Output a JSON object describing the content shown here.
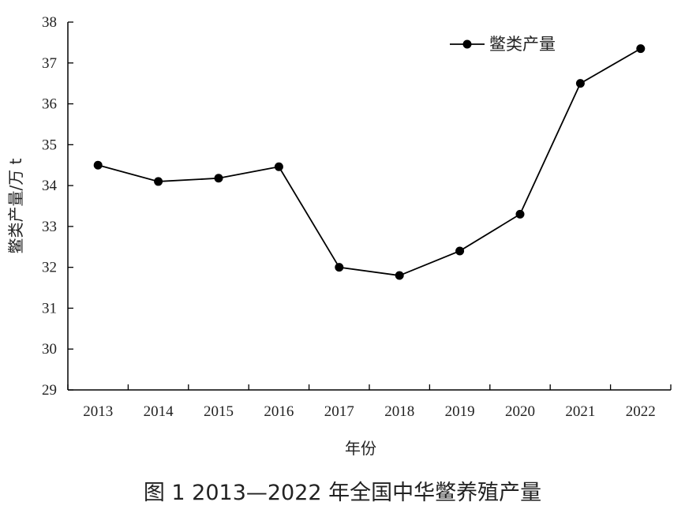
{
  "caption": "图 1  2013—2022 年全国中华鳖养殖产量",
  "chart_data": {
    "type": "line",
    "title": "",
    "xlabel": "年份",
    "ylabel": "鳖类产量/万 t",
    "categories": [
      "2013",
      "2014",
      "2015",
      "2016",
      "2017",
      "2018",
      "2019",
      "2020",
      "2021",
      "2022"
    ],
    "series": [
      {
        "name": "鳖类产量",
        "values": [
          34.5,
          34.1,
          34.18,
          34.46,
          32.0,
          31.8,
          32.4,
          33.3,
          36.5,
          37.35
        ]
      }
    ],
    "ylim": [
      29,
      38
    ],
    "yticks": [
      "29",
      "30",
      "31",
      "32",
      "33",
      "34",
      "35",
      "36",
      "37",
      "38"
    ],
    "grid": false,
    "legend": "top-right",
    "line_color": "#000000"
  }
}
